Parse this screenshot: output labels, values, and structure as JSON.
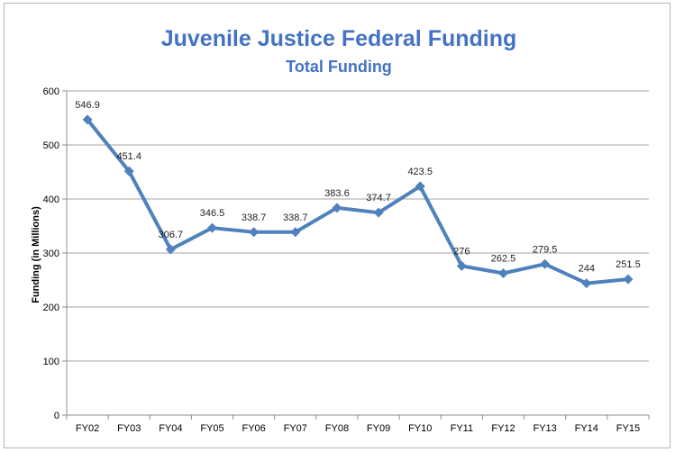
{
  "chart_data": {
    "type": "line",
    "title": "Juvenile Justice Federal Funding",
    "subtitle": "Total Funding",
    "xlabel": "",
    "ylabel": "Funding (in Millions)",
    "categories": [
      "FY02",
      "FY03",
      "FY04",
      "FY05",
      "FY06",
      "FY07",
      "FY08",
      "FY09",
      "FY10",
      "FY11",
      "FY12",
      "FY13",
      "FY14",
      "FY15"
    ],
    "series": [
      {
        "name": "Total Funding",
        "values": [
          546.9,
          451.4,
          306.7,
          346.5,
          338.7,
          338.7,
          383.6,
          374.7,
          423.5,
          276,
          262.5,
          279.5,
          244,
          251.5
        ],
        "data_labels": [
          "546.9",
          "451.4",
          "306.7",
          "346.5",
          "338.7",
          "338.7",
          "383.6",
          "374.7",
          "423.5",
          "276",
          "262.5",
          "279.5",
          "244",
          "251.5"
        ]
      }
    ],
    "ylim": [
      0,
      600
    ],
    "yticks": [
      0,
      100,
      200,
      300,
      400,
      500,
      600
    ],
    "grid": true,
    "legend": "none",
    "colors": {
      "line": "#4f81bd",
      "title": "#4472c4",
      "grid": "#a6a6a6"
    }
  }
}
